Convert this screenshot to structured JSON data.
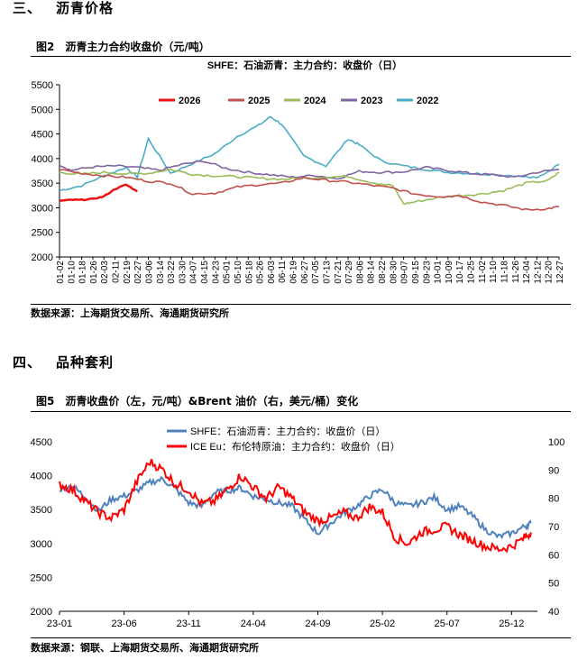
{
  "section3": {
    "number": "三、",
    "title": "沥青价格"
  },
  "fig2": {
    "label": "图2",
    "title": "沥青主力合约收盘价（元/吨）",
    "source": "数据来源：上海期货交易所、海通期货研究所"
  },
  "section4": {
    "number": "四、",
    "title": "品种套利"
  },
  "fig5": {
    "label": "图5",
    "title": "沥青收盘价（左，元/吨）&Brent 油价（右，美元/桶）变化",
    "source": "数据来源：钢联、上海期货交易所、海通期货研究所"
  },
  "chart_data": [
    {
      "type": "line",
      "title": "SHFE：石油沥青：主力合约：收盘价（日）",
      "xlabel": "",
      "ylabel": "",
      "ylim": [
        2000,
        5500
      ],
      "yticks": [
        2000,
        2500,
        3000,
        3500,
        4000,
        4500,
        5000,
        5500
      ],
      "x_ticks": [
        "01-02",
        "01-10",
        "01-18",
        "01-26",
        "02-03",
        "02-11",
        "02-19",
        "02-27",
        "03-06",
        "03-14",
        "03-22",
        "03-30",
        "04-07",
        "04-15",
        "04-23",
        "05-01",
        "05-10",
        "05-18",
        "05-26",
        "06-03",
        "06-11",
        "06-19",
        "06-27",
        "07-05",
        "07-13",
        "07-21",
        "07-29",
        "08-06",
        "08-14",
        "08-22",
        "08-30",
        "09-07",
        "09-15",
        "09-23",
        "10-01",
        "10-09",
        "10-17",
        "10-25",
        "11-02",
        "11-10",
        "11-18",
        "11-26",
        "12-04",
        "12-12",
        "12-20",
        "12-27"
      ],
      "grid": false,
      "legend_position": "top",
      "series": [
        {
          "name": "2026",
          "color": "#ee1111",
          "x": [
            0,
            1,
            2,
            3,
            4,
            5,
            6,
            7
          ],
          "values": [
            3140,
            3160,
            3160,
            3180,
            3230,
            3380,
            3470,
            3330
          ]
        },
        {
          "name": "2025",
          "color": "#c0504d",
          "x": [
            0,
            2,
            4,
            6,
            8,
            10,
            12,
            14,
            16,
            18,
            20,
            22,
            24,
            26,
            28,
            30,
            32,
            34,
            36,
            38,
            40,
            42,
            44,
            45
          ],
          "values": [
            3780,
            3700,
            3650,
            3620,
            3540,
            3500,
            3280,
            3300,
            3420,
            3470,
            3500,
            3610,
            3560,
            3520,
            3460,
            3400,
            3280,
            3230,
            3250,
            3120,
            3050,
            2960,
            2980,
            3020
          ]
        },
        {
          "name": "2024",
          "color": "#9bbb59",
          "x": [
            0,
            2,
            4,
            6,
            8,
            10,
            12,
            14,
            16,
            18,
            20,
            22,
            24,
            26,
            28,
            30,
            31,
            32,
            34,
            36,
            38,
            40,
            42,
            44,
            45
          ],
          "values": [
            3720,
            3680,
            3720,
            3690,
            3700,
            3780,
            3680,
            3650,
            3630,
            3600,
            3580,
            3600,
            3620,
            3640,
            3520,
            3450,
            3080,
            3120,
            3200,
            3250,
            3280,
            3350,
            3500,
            3550,
            3720
          ]
        },
        {
          "name": "2023",
          "color": "#8064a2",
          "x": [
            0,
            1,
            3,
            5,
            7,
            9,
            11,
            13,
            15,
            17,
            19,
            21,
            23,
            25,
            27,
            29,
            31,
            33,
            35,
            37,
            39,
            41,
            43,
            45
          ],
          "values": [
            3880,
            3760,
            3830,
            3850,
            3820,
            3760,
            3880,
            3950,
            3800,
            3720,
            3670,
            3620,
            3660,
            3590,
            3740,
            3720,
            3730,
            3820,
            3760,
            3700,
            3670,
            3620,
            3720,
            3780
          ]
        },
        {
          "name": "2022",
          "color": "#4bacc6",
          "x": [
            0,
            2,
            4,
            6,
            7,
            8,
            10,
            12,
            14,
            16,
            18,
            19,
            20,
            22,
            24,
            26,
            27,
            29,
            31,
            33,
            35,
            37,
            39,
            41,
            43,
            45
          ],
          "values": [
            3350,
            3450,
            3650,
            3820,
            3620,
            4400,
            3700,
            3900,
            4100,
            4450,
            4680,
            4850,
            4700,
            4050,
            3850,
            4400,
            4280,
            3950,
            3850,
            3780,
            3720,
            3700,
            3680,
            3650,
            3600,
            3880
          ]
        }
      ]
    },
    {
      "type": "line",
      "title": "",
      "xlabel": "",
      "ylabel": "",
      "ylim_left": [
        2000,
        4500
      ],
      "yticks_left": [
        2000,
        2500,
        3000,
        3500,
        4000,
        4500
      ],
      "ylim_right": [
        40,
        100
      ],
      "yticks_right": [
        40,
        50,
        60,
        70,
        80,
        90,
        100
      ],
      "x_ticks": [
        "23-01",
        "23-06",
        "23-11",
        "24-04",
        "24-09",
        "25-02",
        "25-07",
        "25-12"
      ],
      "x_tick_months": [
        0,
        5,
        10,
        15,
        20,
        25,
        30,
        35
      ],
      "x_range_months": [
        0,
        37
      ],
      "grid": false,
      "legend_position": "top-center",
      "series": [
        {
          "name": "SHFE：石油沥青：主力合约：收盘价（日）",
          "axis": "left",
          "color": "#4f81bd",
          "x": [
            0,
            1,
            2,
            3,
            4,
            5,
            6,
            7,
            8,
            9,
            10,
            11,
            12,
            13,
            14,
            15,
            16,
            17,
            18,
            19,
            20,
            21,
            22,
            23,
            24,
            25,
            26,
            27,
            28,
            29,
            30,
            31,
            32,
            33,
            34,
            35,
            36,
            36.5
          ],
          "values": [
            3800,
            3850,
            3680,
            3480,
            3650,
            3700,
            3780,
            3900,
            3950,
            3800,
            3600,
            3550,
            3750,
            3780,
            3820,
            3700,
            3650,
            3600,
            3550,
            3350,
            3150,
            3300,
            3450,
            3550,
            3700,
            3800,
            3600,
            3550,
            3600,
            3680,
            3500,
            3550,
            3400,
            3200,
            3100,
            3150,
            3250,
            3300
          ]
        },
        {
          "name": "ICE Eu：布伦特原油：主力合约：收盘价（日）",
          "axis": "right",
          "color": "#ff0000",
          "x": [
            0,
            1,
            2,
            3,
            4,
            5,
            6,
            7,
            8,
            9,
            10,
            11,
            12,
            13,
            14,
            15,
            16,
            17,
            18,
            19,
            20,
            21,
            22,
            23,
            24,
            25,
            26,
            27,
            28,
            29,
            30,
            31,
            32,
            33,
            34,
            35,
            36,
            36.5
          ],
          "values": [
            85,
            83,
            79,
            75,
            73,
            76,
            86,
            93,
            90,
            85,
            83,
            78,
            79,
            83,
            88,
            84,
            80,
            84,
            80,
            75,
            72,
            73,
            75,
            73,
            77,
            75,
            66,
            64,
            68,
            69,
            70,
            67,
            65,
            63,
            62,
            63,
            66,
            68
          ]
        }
      ]
    }
  ]
}
